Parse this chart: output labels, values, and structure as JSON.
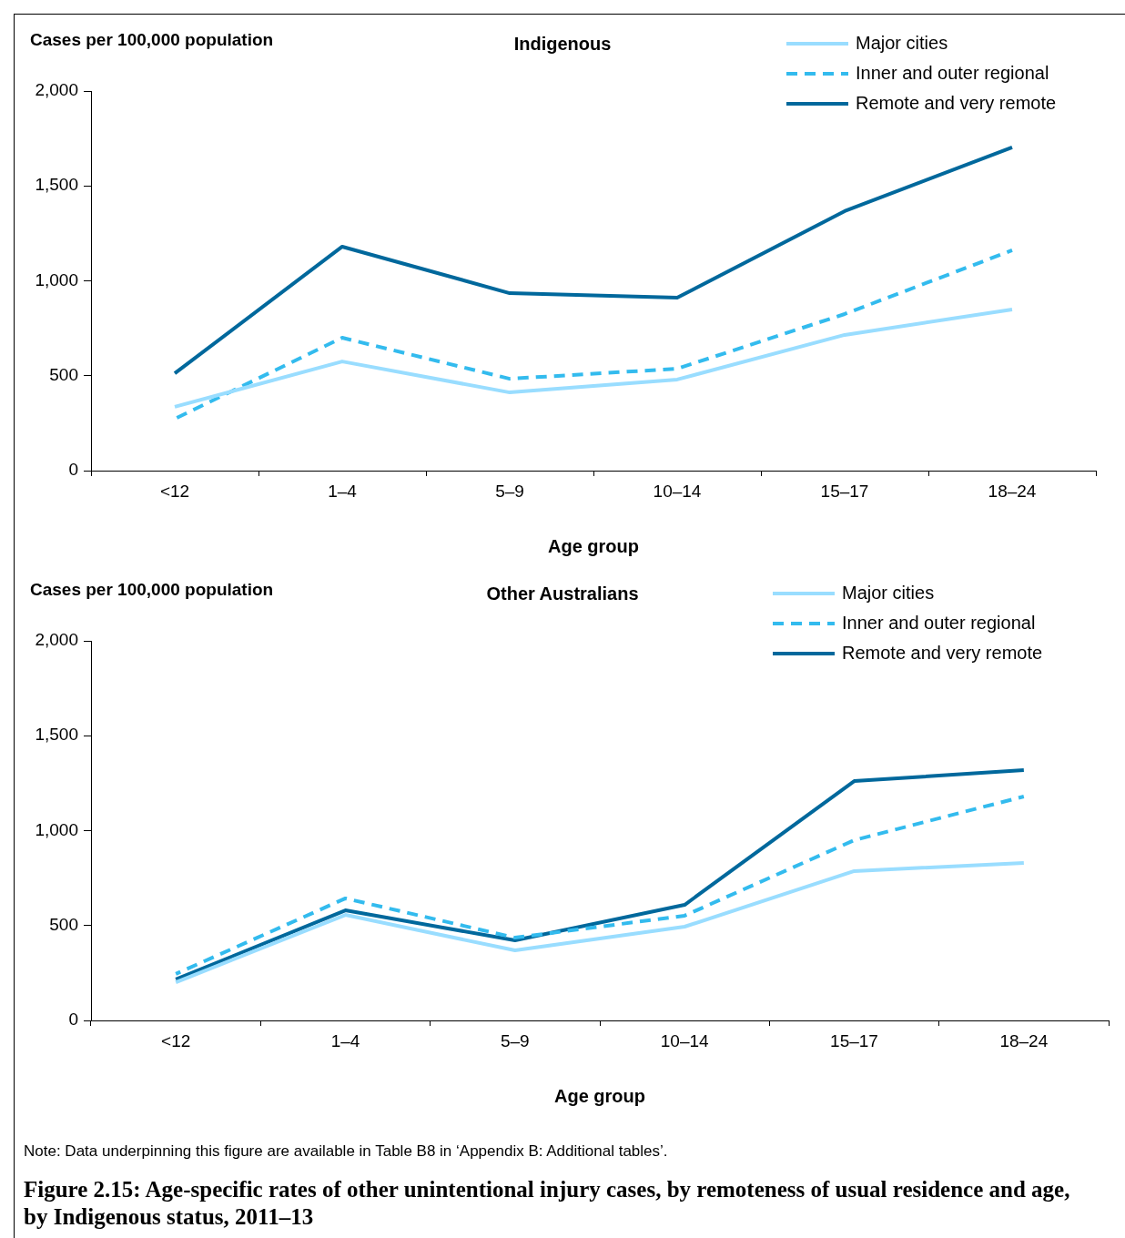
{
  "chart_data": [
    {
      "type": "line",
      "title": "Indigenous",
      "ylabel": "Cases per 100,000 population",
      "xlabel": "Age group",
      "categories": [
        "<12",
        "1–4",
        "5–9",
        "10–14",
        "15–17",
        "18–24"
      ],
      "ylim": [
        0,
        2000
      ],
      "yticks": [
        {
          "value": 0,
          "label": "0"
        },
        {
          "value": 500,
          "label": "500"
        },
        {
          "value": 1000,
          "label": "1,000"
        },
        {
          "value": 1500,
          "label": "1,500"
        },
        {
          "value": 2000,
          "label": "2,000"
        }
      ],
      "grid": false,
      "legend": "top right",
      "marker": "none",
      "series": [
        {
          "name": "Major cities",
          "color": "#99ddff",
          "line_style": "solid",
          "values": [
            336,
            575,
            412,
            480,
            715,
            849
          ]
        },
        {
          "name": "Inner and outer regional",
          "color": "#33bbee",
          "line_style": "dashed",
          "values": [
            273,
            700,
            484,
            537,
            825,
            1161
          ]
        },
        {
          "name": "Remote and very remote",
          "color": "#00689c",
          "line_style": "solid",
          "values": [
            513,
            1180,
            935,
            911,
            1367,
            1703
          ]
        }
      ]
    },
    {
      "type": "line",
      "title": "Other Australians",
      "ylabel": "Cases per 100,000 population",
      "xlabel": "Age group",
      "categories": [
        "<12",
        "1–4",
        "5–9",
        "10–14",
        "15–17",
        "18–24"
      ],
      "ylim": [
        0,
        2000
      ],
      "yticks": [
        {
          "value": 0,
          "label": "0"
        },
        {
          "value": 500,
          "label": "500"
        },
        {
          "value": 1000,
          "label": "1,000"
        },
        {
          "value": 1500,
          "label": "1,500"
        },
        {
          "value": 2000,
          "label": "2,000"
        }
      ],
      "grid": false,
      "legend": "top right",
      "marker": "none",
      "series": [
        {
          "name": "Major cities",
          "color": "#99ddff",
          "line_style": "solid",
          "values": [
            201,
            556,
            369,
            494,
            787,
            830
          ]
        },
        {
          "name": "Inner and outer regional",
          "color": "#33bbee",
          "line_style": "dashed",
          "values": [
            245,
            643,
            436,
            552,
            950,
            1180
          ]
        },
        {
          "name": "Remote and very remote",
          "color": "#00689c",
          "line_style": "solid",
          "values": [
            216,
            580,
            422,
            609,
            1261,
            1319
          ]
        }
      ],
      "annotations": [
        "Note: Data underpinning this figure are available in Table B8 in ‘Appendix B: Additional tables’.",
        "Figure 2.15: Age-specific rates of other unintentional injury cases, by remoteness of usual residence and age, by Indigenous status, 2011–13"
      ]
    }
  ]
}
